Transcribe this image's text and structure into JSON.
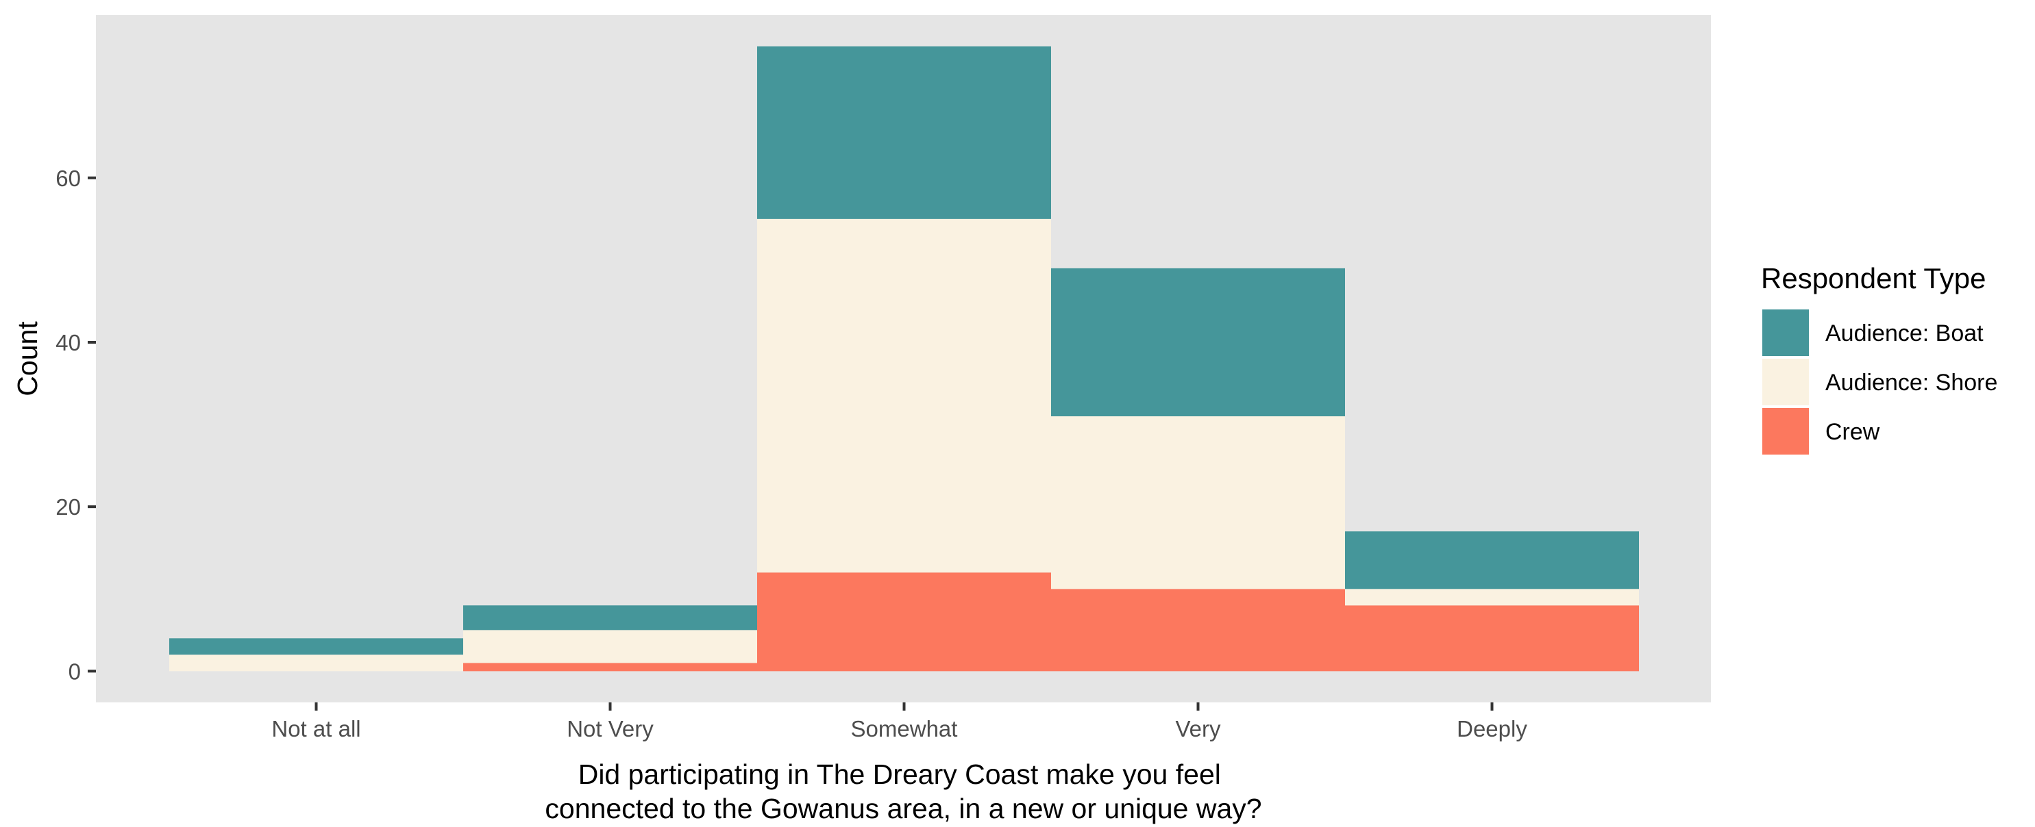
{
  "chart_data": {
    "type": "bar",
    "stacked": true,
    "categories": [
      "Not at all",
      "Not Very",
      "Somewhat",
      "Very",
      "Deeply"
    ],
    "series": [
      {
        "name": "Crew",
        "color": "#FC785E",
        "values": [
          0,
          1,
          12,
          10,
          8
        ]
      },
      {
        "name": "Audience: Shore",
        "color": "#FAF2E1",
        "values": [
          2,
          4,
          43,
          21,
          2
        ]
      },
      {
        "name": "Audience: Boat",
        "color": "#45969A",
        "values": [
          2,
          3,
          21,
          18,
          7
        ]
      }
    ],
    "xlabel_lines": [
      "Did participating in The Dreary Coast make you feel",
      "connected to the Gowanus area, in a new or unique way?"
    ],
    "ylabel": "Count",
    "ylim": [
      -3.8,
      79.8
    ],
    "yticks": [
      0,
      20,
      40,
      60
    ],
    "grid": false,
    "panel_background": "#E5E5E5",
    "legend": {
      "title": "Respondent Type",
      "position": "right",
      "items": [
        {
          "label": "Audience: Boat",
          "color": "#45969A"
        },
        {
          "label": "Audience: Shore",
          "color": "#FAF2E1"
        },
        {
          "label": "Crew",
          "color": "#FC785E"
        }
      ]
    }
  }
}
